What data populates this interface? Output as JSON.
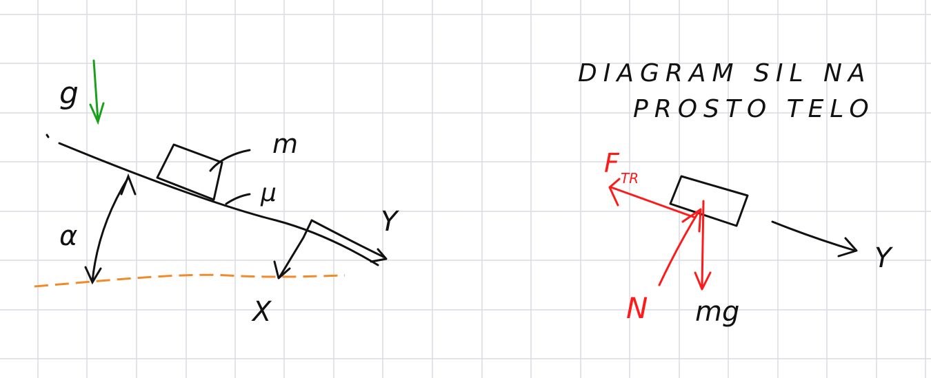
{
  "colors": {
    "grid": "#d9dbe2",
    "ink": "#111111",
    "force": "#ff1a1a",
    "gravity": "#19a01a",
    "ground": "#f08a2a"
  },
  "left_sketch": {
    "gravity_label": "g",
    "mass_label": "m",
    "friction_label": "μ",
    "angle_label": "α",
    "axis_y_label": "Y",
    "axis_x_label": "X"
  },
  "right_sketch": {
    "title_line1": "DIAGRAM SIL NA",
    "title_line2": "PROSTO TELO",
    "friction_force_label": "F",
    "friction_force_sub": "TR",
    "normal_force_label": "N",
    "weight_label": "mg",
    "axis_y_label": "Y"
  }
}
